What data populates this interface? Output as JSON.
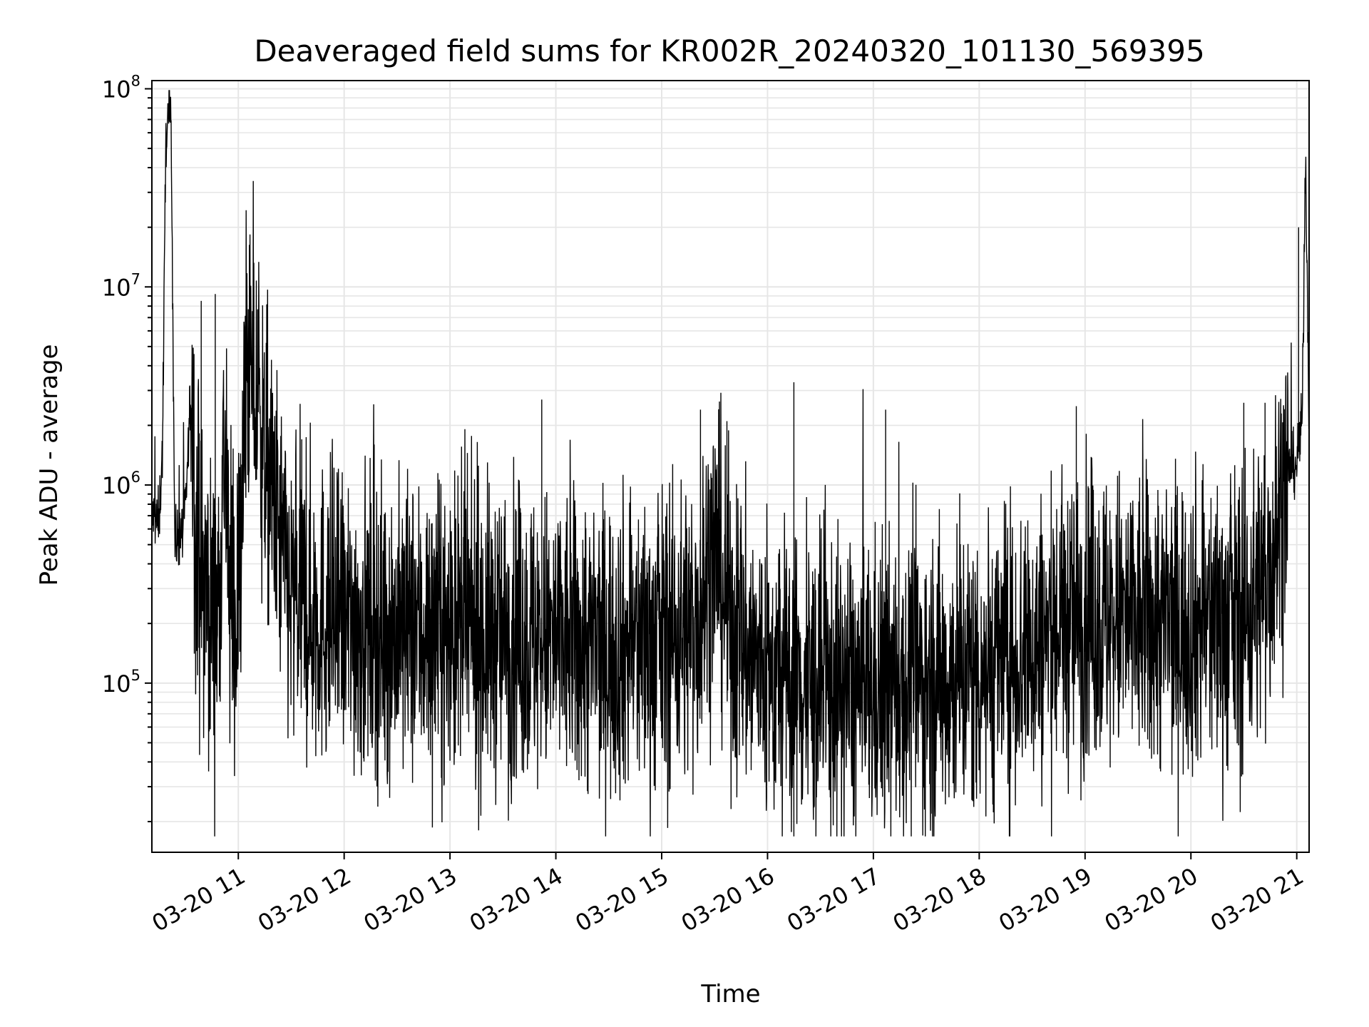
{
  "chart_data": {
    "type": "line",
    "title": "Deaveraged field sums for KR002R_20240320_101130_569395",
    "xlabel": "Time",
    "ylabel": "Peak ADU - average",
    "yscale": "log",
    "ylim": [
      14000,
      110000000
    ],
    "xlim": [
      "03-20 10:11",
      "03-20 21:07"
    ],
    "grid": true,
    "x_ticks": [
      "03-20 11",
      "03-20 12",
      "03-20 13",
      "03-20 14",
      "03-20 15",
      "03-20 16",
      "03-20 17",
      "03-20 18",
      "03-20 19",
      "03-20 20",
      "03-20 21"
    ],
    "y_ticks": [
      {
        "base": "10",
        "exp": "5"
      },
      {
        "base": "10",
        "exp": "6"
      },
      {
        "base": "10",
        "exp": "7"
      },
      {
        "base": "10",
        "exp": "8"
      }
    ],
    "series": [
      {
        "color": "#000000",
        "x": [
          "03-20 10:11",
          "03-20 10:15",
          "03-20 10:17",
          "03-20 10:19",
          "03-20 10:21",
          "03-20 10:22",
          "03-20 10:24",
          "03-20 10:26",
          "03-20 10:28",
          "03-20 10:30",
          "03-20 10:33",
          "03-20 10:36",
          "03-20 10:40",
          "03-20 10:44",
          "03-20 10:48",
          "03-20 10:52",
          "03-20 10:56",
          "03-20 11:00",
          "03-20 11:05",
          "03-20 11:30",
          "03-20 12:00",
          "03-20 12:30",
          "03-20 13:00",
          "03-20 13:30",
          "03-20 14:00",
          "03-20 14:30",
          "03-20 15:00",
          "03-20 15:20",
          "03-20 15:30",
          "03-20 15:40",
          "03-20 16:00",
          "03-20 16:30",
          "03-20 17:00",
          "03-20 17:30",
          "03-20 18:00",
          "03-20 18:30",
          "03-20 19:00",
          "03-20 19:30",
          "03-20 20:00",
          "03-20 20:30",
          "03-20 20:45",
          "03-20 20:55",
          "03-20 21:00",
          "03-20 21:03",
          "03-20 21:05",
          "03-20 21:07"
        ],
        "y": [
          700000,
          650000,
          1500000,
          60000000,
          70000000,
          65000000,
          500000,
          550000,
          600000,
          700000,
          3000000,
          600000,
          300000,
          250000,
          200000,
          1500000,
          180000,
          250000,
          4500000,
          250000,
          200000,
          180000,
          180000,
          170000,
          160000,
          150000,
          160000,
          200000,
          500000,
          180000,
          110000,
          90000,
          90000,
          100000,
          120000,
          150000,
          220000,
          200000,
          200000,
          200000,
          400000,
          1200000,
          1300000,
          2000000,
          50000000,
          2000000
        ]
      }
    ],
    "spikes": {
      "x": [
        "03-20 10:39",
        "03-20 10:47",
        "03-20 11:04",
        "03-20 11:36",
        "03-20 12:17",
        "03-20 13:52",
        "03-20 15:22",
        "03-20 15:37",
        "03-20 16:15",
        "03-20 17:07",
        "03-20 18:55",
        "03-20 20:30",
        "03-20 20:42",
        "03-20 21:01"
      ],
      "y": [
        8500000,
        9200000,
        4800000,
        1700000,
        1600000,
        2700000,
        2400000,
        2100000,
        3300000,
        2400000,
        2500000,
        2600000,
        2600000,
        20000000
      ]
    }
  }
}
